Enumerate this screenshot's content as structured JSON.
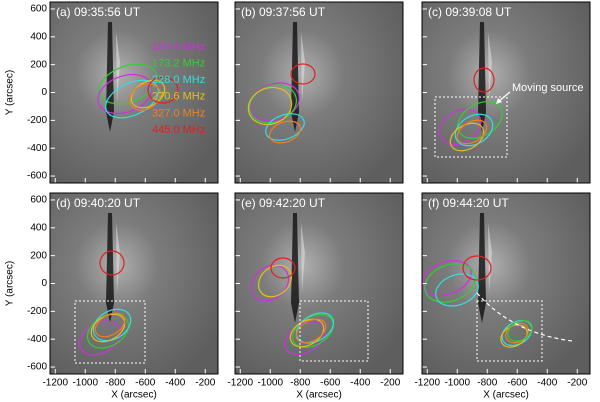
{
  "chart_data": [
    {
      "type": "image",
      "title": "(a) 09:35:56 UT",
      "ylabel": "Y (arcsec)",
      "xlim": [
        -1235,
        -115
      ],
      "ylim": [
        -650,
        650
      ],
      "xticks": [
        -1200,
        -1000,
        -800,
        -600,
        -400,
        -200
      ],
      "yticks": [
        -600,
        -400,
        -200,
        0,
        200,
        400,
        600
      ],
      "series": [
        {
          "name": "150.9 MHz",
          "color": "#d030e0"
        },
        {
          "name": "173.2 MHz",
          "color": "#30d030"
        },
        {
          "name": "228.0 MHz",
          "color": "#30e0e0"
        },
        {
          "name": "270.6 MHz",
          "color": "#e0c020"
        },
        {
          "name": "327.0 MHz",
          "color": "#f08020"
        },
        {
          "name": "445.0 MHz",
          "color": "#e02020"
        }
      ]
    },
    {
      "type": "image",
      "title": "(b) 09:37:56 UT",
      "xlim": [
        -1235,
        -115
      ],
      "ylim": [
        -650,
        650
      ],
      "xticks": [
        -1200,
        -1000,
        -800,
        -600,
        -400,
        -200
      ],
      "yticks": [
        -600,
        -400,
        -200,
        0,
        200,
        400,
        600
      ]
    },
    {
      "type": "image",
      "title": "(c) 09:39:08 UT",
      "annotation": "Moving source",
      "xlim": [
        -1235,
        -115
      ],
      "ylim": [
        -650,
        650
      ],
      "xticks": [
        -1200,
        -1000,
        -800,
        -600,
        -400,
        -200
      ],
      "yticks": [
        -600,
        -400,
        -200,
        0,
        200,
        400,
        600
      ]
    },
    {
      "type": "image",
      "title": "(d) 09:40:20 UT",
      "xlabel": "X (arcsec)",
      "ylabel": "Y (arcsec)",
      "xlim": [
        -1235,
        -115
      ],
      "ylim": [
        -650,
        650
      ],
      "xticks": [
        -1200,
        -1000,
        -800,
        -600,
        -400,
        -200
      ],
      "yticks": [
        -600,
        -400,
        -200,
        0,
        200,
        400,
        600
      ]
    },
    {
      "type": "image",
      "title": "(e) 09:42:20 UT",
      "xlabel": "X (arcsec)",
      "xlim": [
        -1235,
        -115
      ],
      "ylim": [
        -650,
        650
      ],
      "xticks": [
        -1200,
        -1000,
        -800,
        -600,
        -400,
        -200
      ],
      "yticks": [
        -600,
        -400,
        -200,
        0,
        200,
        400,
        600
      ]
    },
    {
      "type": "image",
      "title": "(f) 09:44:20 UT",
      "xlabel": "X (arcsec)",
      "xlim": [
        -1235,
        -115
      ],
      "ylim": [
        -650,
        650
      ],
      "xticks": [
        -1200,
        -1000,
        -800,
        -600,
        -400,
        -200
      ],
      "yticks": [
        -600,
        -400,
        -200,
        0,
        200,
        400,
        600
      ]
    }
  ]
}
